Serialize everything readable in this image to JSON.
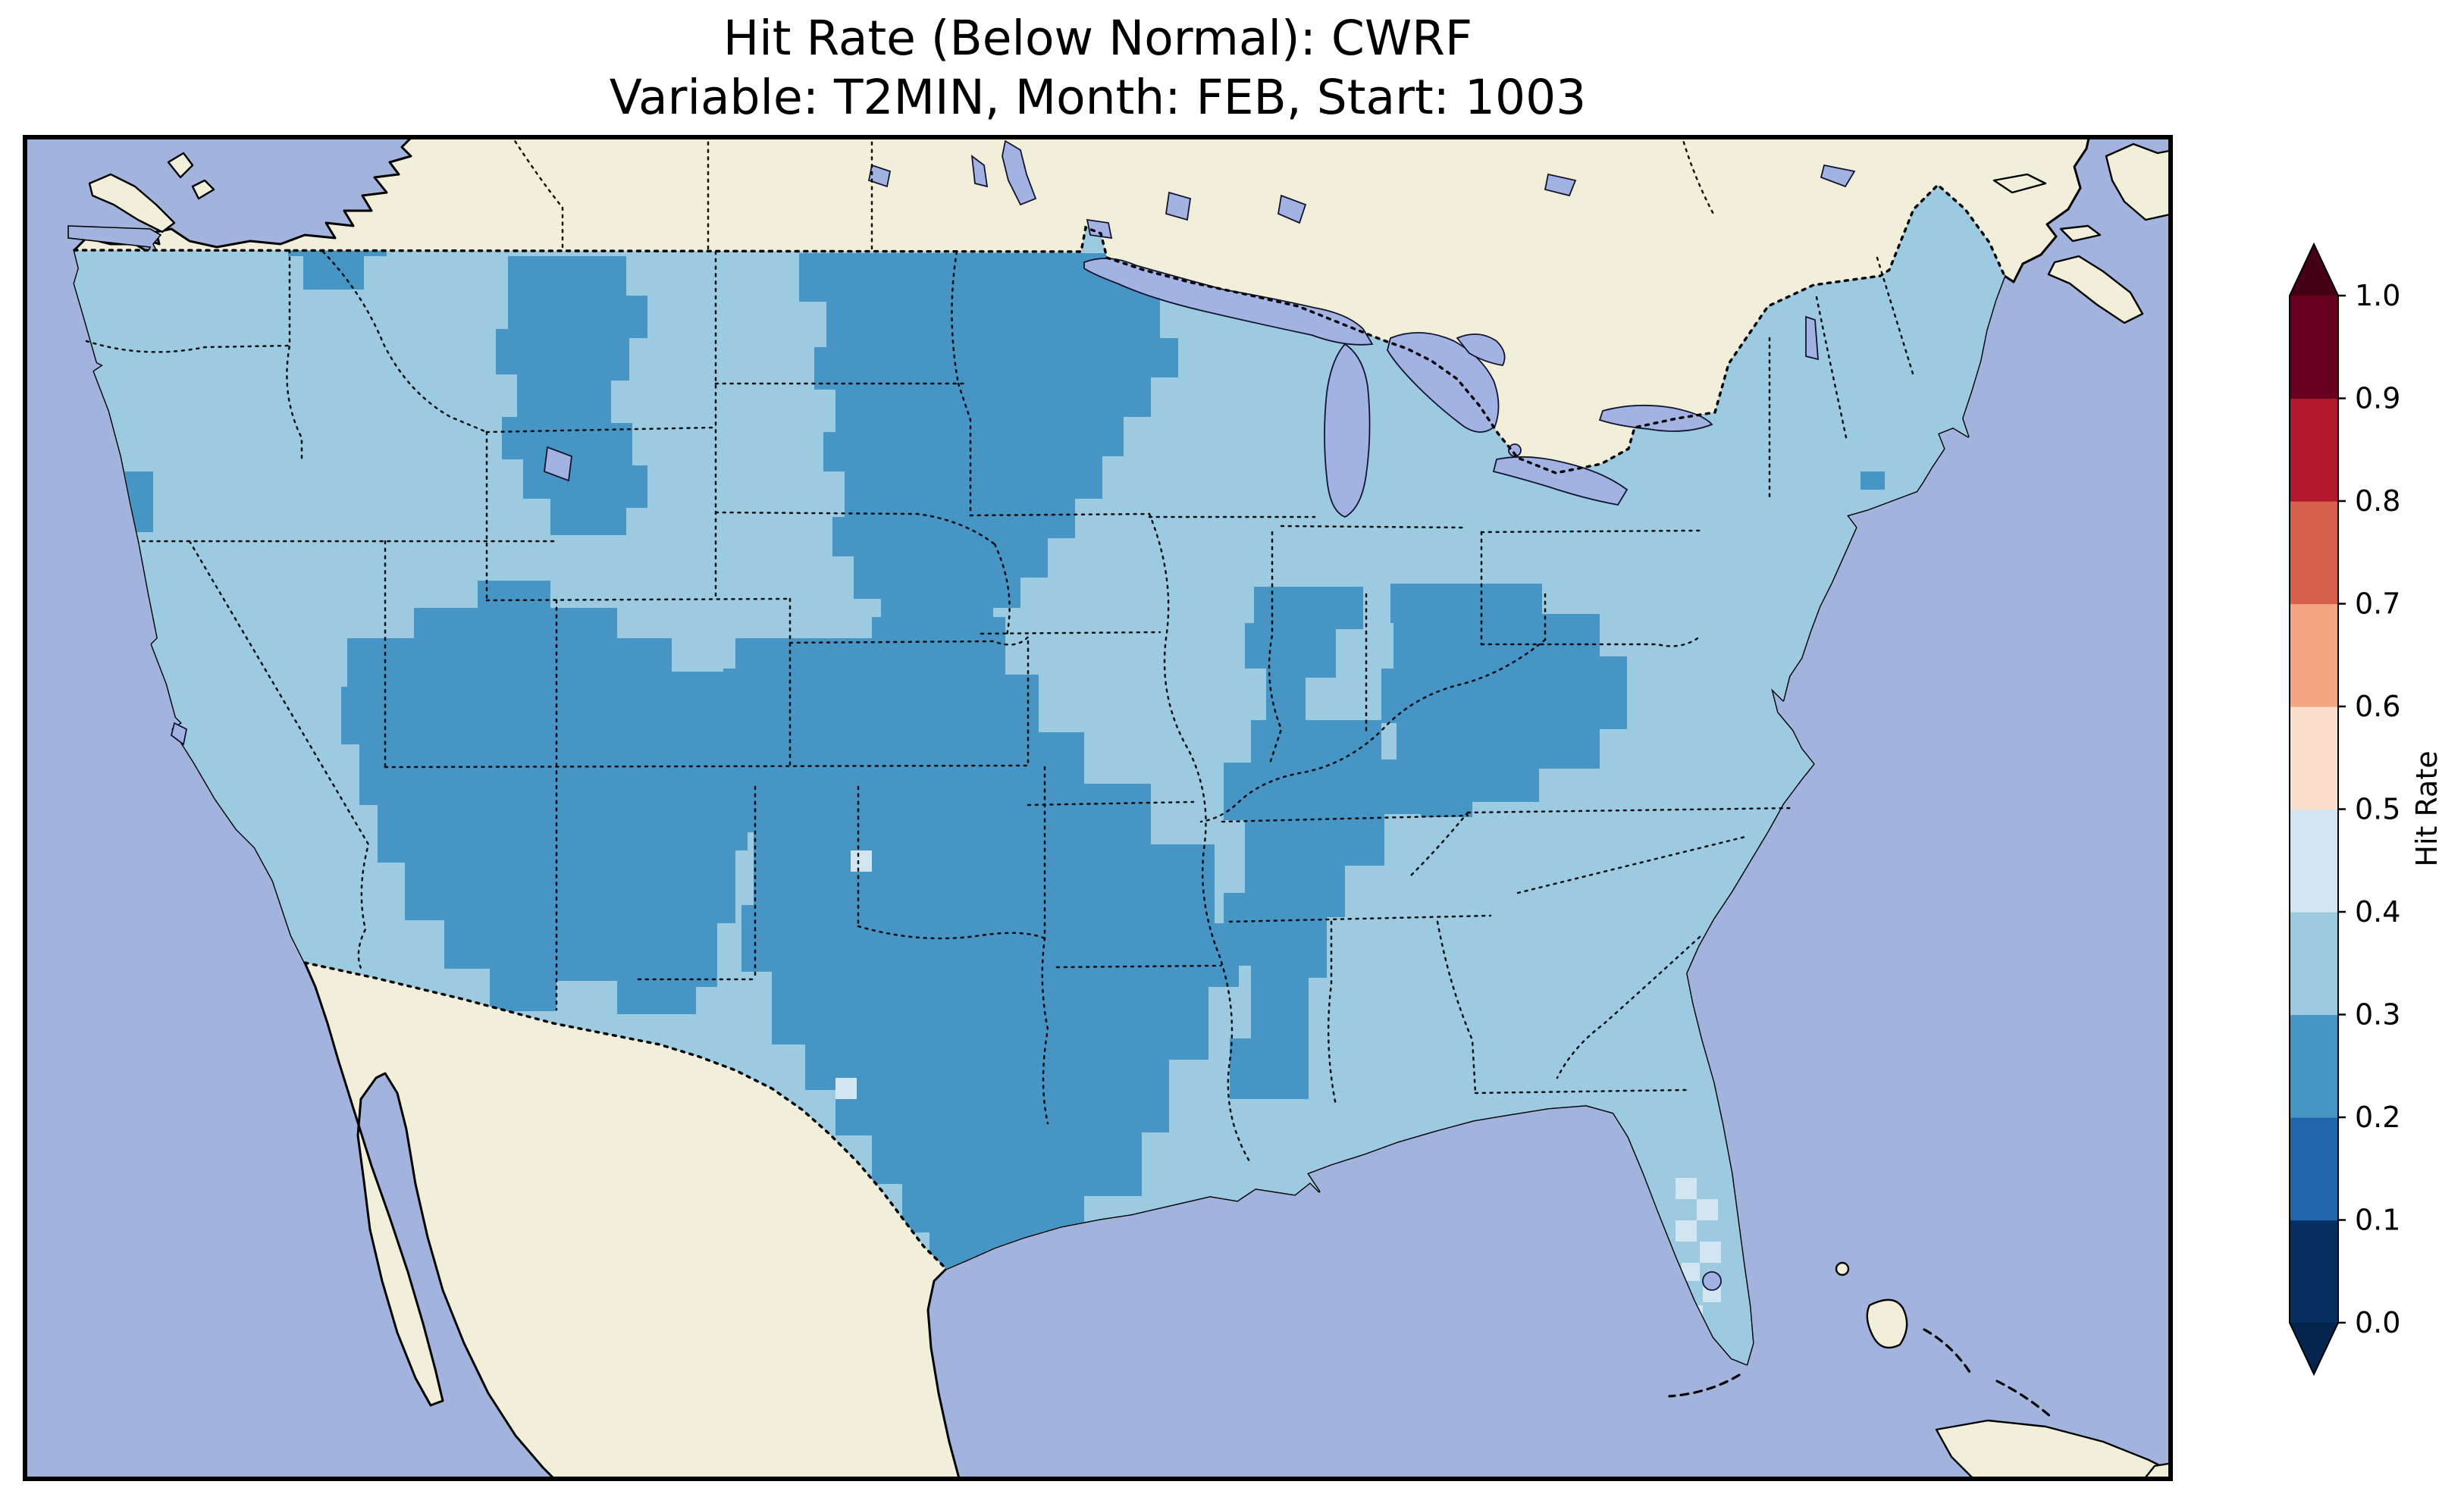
{
  "title": {
    "line1": "Hit Rate (Below Normal): CWRF",
    "line2": "Variable: T2MIN, Month: FEB, Start: 1003"
  },
  "chart_data": {
    "type": "heatmap",
    "title": "Hit Rate (Below Normal): CWRF",
    "subtitle": "Variable: T2MIN, Month: FEB, Start: 1003",
    "metric": "Hit Rate (Below Normal)",
    "model": "CWRF",
    "variable": "T2MIN",
    "month": "FEB",
    "start": "1003",
    "region": "Contiguous United States with surrounding Canada, Mexico, Gulf of Mexico and Atlantic",
    "projection": "regional map with gridded cells masked to the United States",
    "colorbar": {
      "label": "Hit Rate",
      "range": [
        0.0,
        1.0
      ],
      "tick_labels": [
        "0.0",
        "0.1",
        "0.2",
        "0.3",
        "0.4",
        "0.5",
        "0.6",
        "0.7",
        "0.8",
        "0.9",
        "1.0"
      ],
      "extend": "both",
      "bin_colors_low_to_high": [
        "#053061",
        "#2166ac",
        "#4695c5",
        "#9ccae0",
        "#d3e5f0",
        "#fbdfcc",
        "#f4a582",
        "#d6604d",
        "#b2182b",
        "#67001f"
      ],
      "under_arrow_color": "#03254d",
      "over_arrow_color": "#450016",
      "legend_position": "right, vertical"
    },
    "map_value_summary": {
      "dominant_bins": [
        "0.2–0.3",
        "0.3–0.4"
      ],
      "bin_02_03_regions": "Northern plains and upper Midwest (ND/SD/MN/NE/IA), interior West (W Montana, Idaho, Utah, Nevada, Arizona, New Mexico, W Colorado), southern plains (Kansas, Oklahoma, Texas, Arkansas, W Louisiana), Ohio Valley (S Michigan, Indiana, Ohio, West Virginia, Kentucky, Tennessee) and Mississippi/Alabama",
      "bin_03_04_regions": "Pacific coast states, eastern Montana, Wisconsin, Illinois, Missouri, Gulf and Atlantic coastal states, Northeast and New England",
      "bin_04_05_regions": "Scattered cells over the central/southern Florida peninsula and isolated cells in Kansas and Texas",
      "bin_05_06_regions": "Two isolated near-white cells near the southern tip of Florida"
    }
  },
  "palette": {
    "ocean": "#a2b4dd",
    "land": "#f1eeda",
    "lakes": "#a2b2e2",
    "hit_02_03": "#4695c5",
    "hit_03_04": "#9ccae0",
    "hit_04_05": "#d3e5f0",
    "hit_05_06": "#f8e8dc",
    "coastline": "#000000",
    "borders": "#000000",
    "frame": "#000000",
    "title_color": "#000000"
  }
}
